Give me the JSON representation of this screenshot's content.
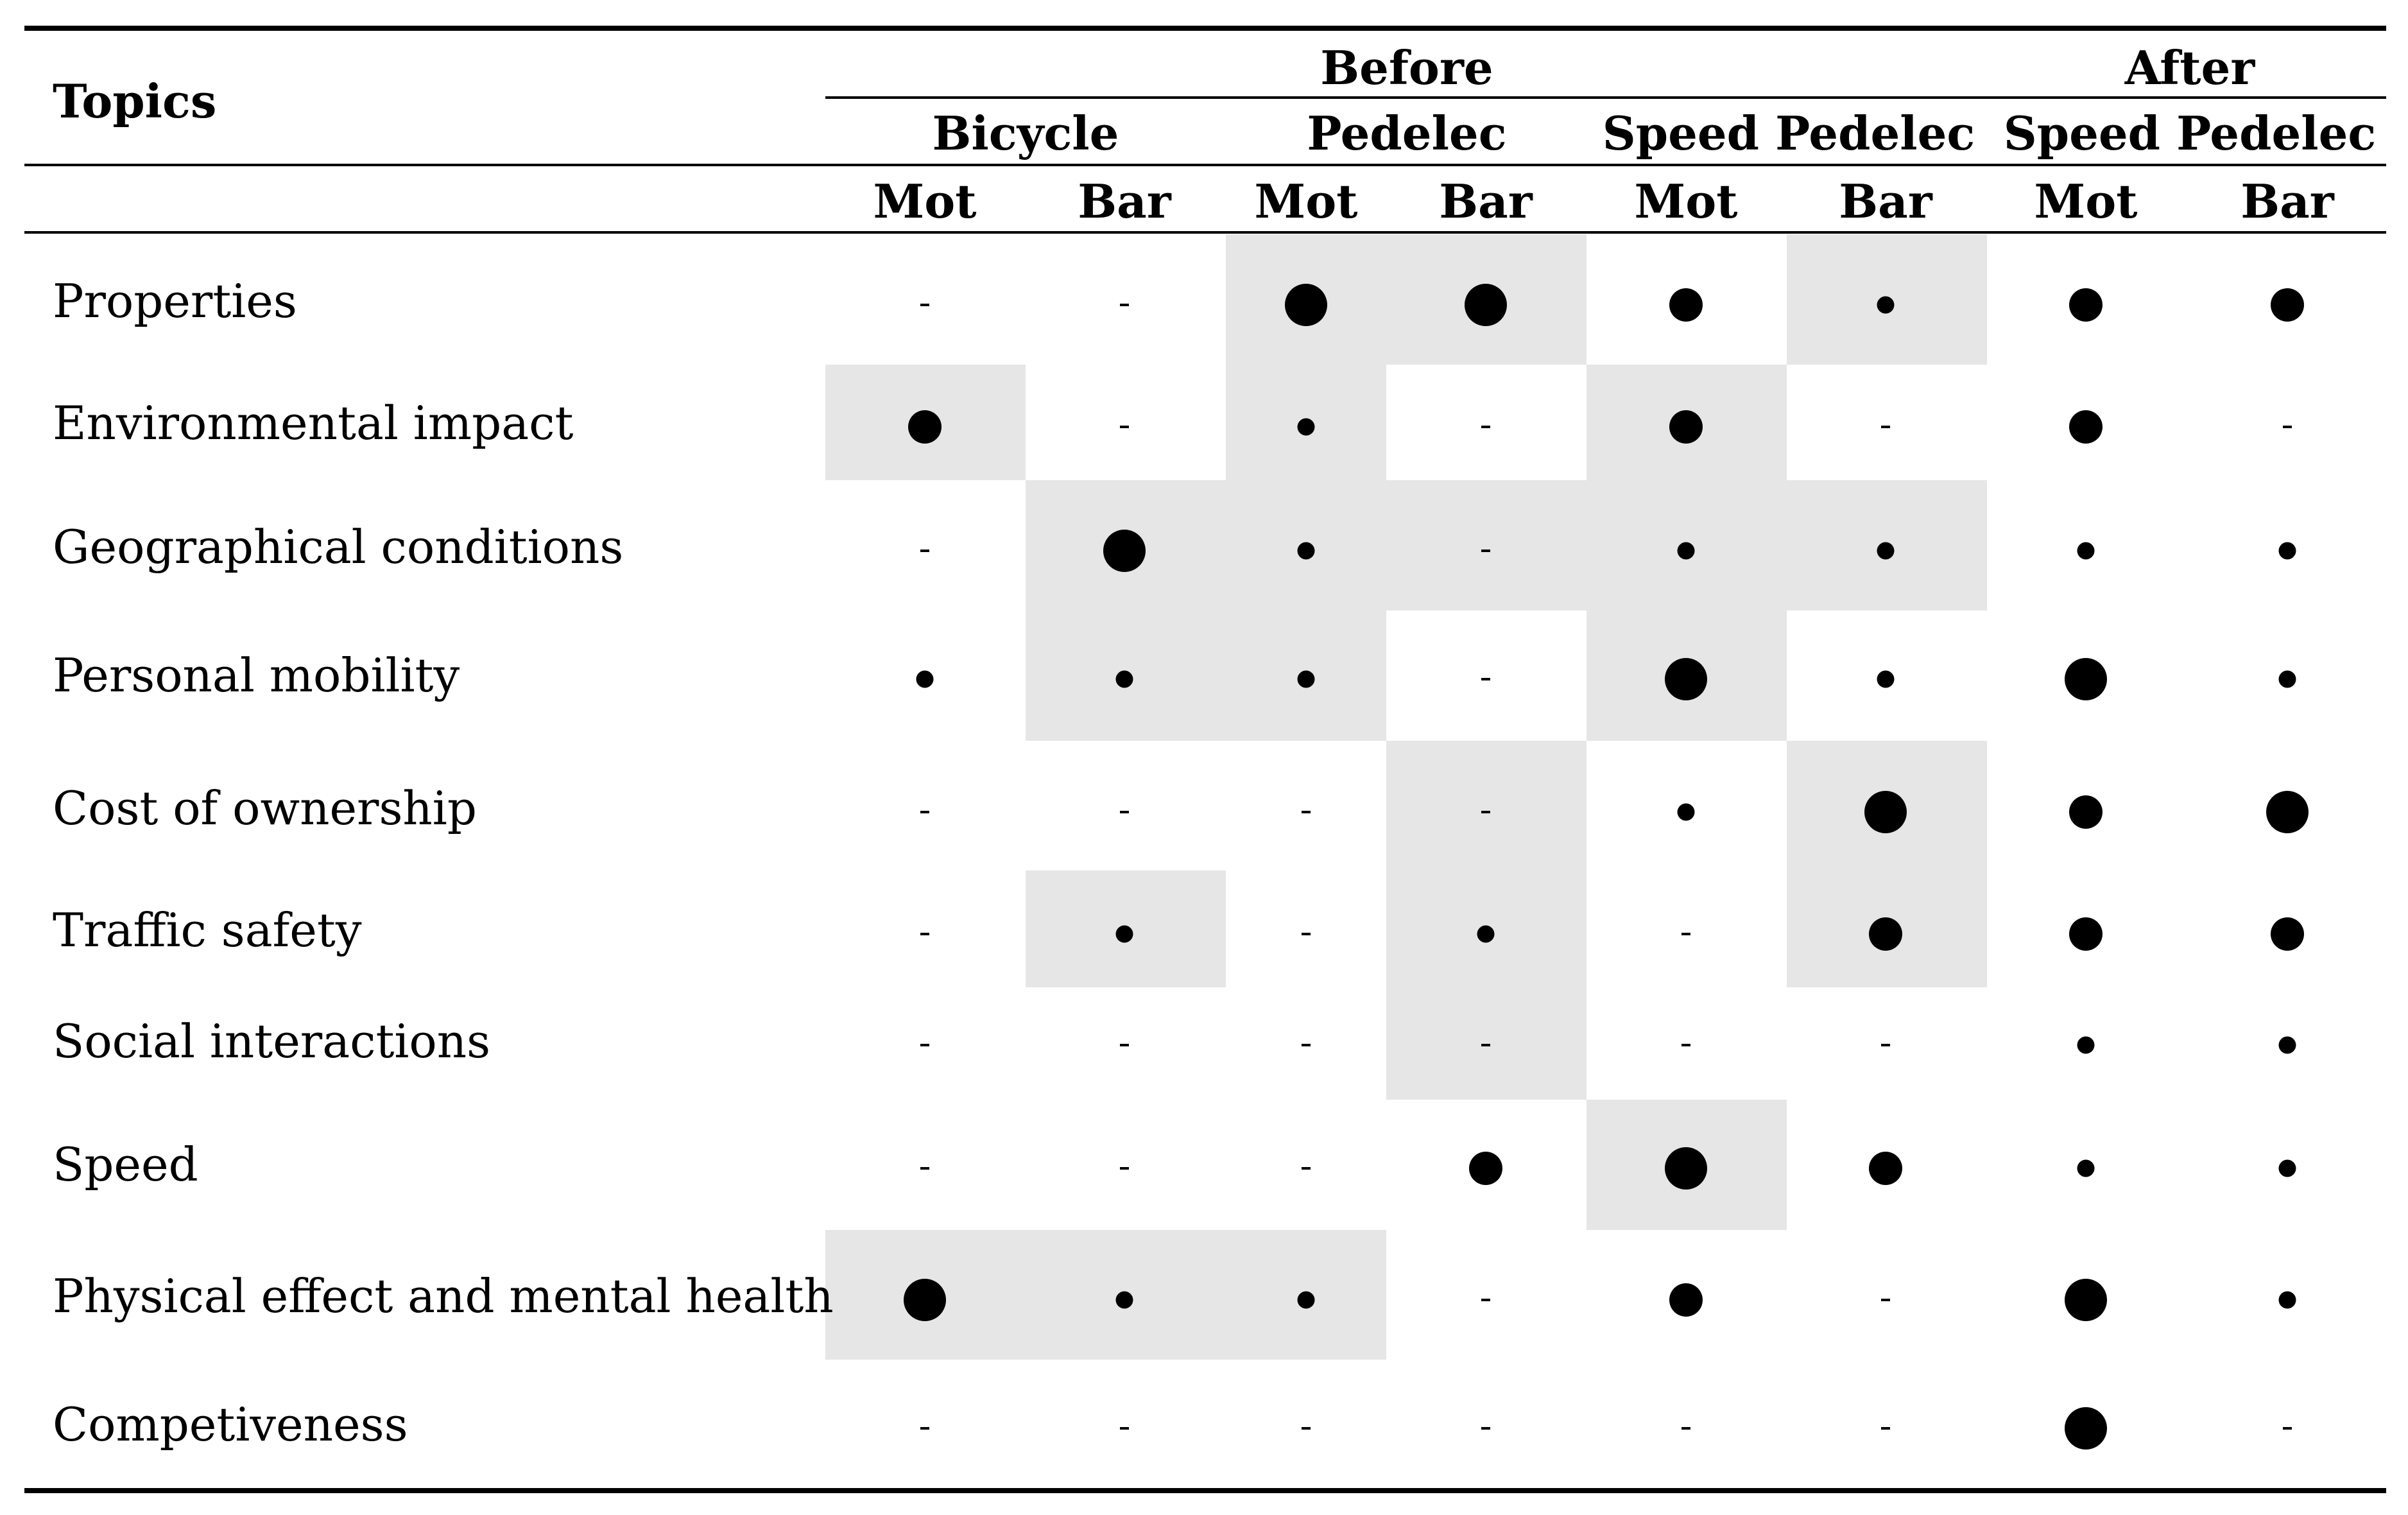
{
  "table": {
    "corner_label": "Topics",
    "periods": [
      "Before",
      "After"
    ],
    "vehicles": [
      "Bicycle",
      "Pedelec",
      "Speed Pedelec",
      "Speed Pedelec"
    ],
    "sub_labels": [
      "Mot",
      "Bar",
      "Mot",
      "Bar",
      "Mot",
      "Bar",
      "Mot",
      "Bar"
    ],
    "rows": [
      {
        "topic": "Properties",
        "cells": [
          "-",
          "-",
          "L",
          "L",
          "M",
          "S",
          "M",
          "M"
        ],
        "shaded": [
          false,
          false,
          true,
          true,
          false,
          true,
          false,
          false
        ]
      },
      {
        "topic": "Environmental impact",
        "cells": [
          "M",
          "-",
          "S",
          "-",
          "M",
          "-",
          "M",
          "-"
        ],
        "shaded": [
          true,
          false,
          true,
          false,
          true,
          false,
          false,
          false
        ]
      },
      {
        "topic": "Geographical conditions",
        "cells": [
          "-",
          "L",
          "S",
          "-",
          "S",
          "S",
          "S",
          "S"
        ],
        "shaded": [
          false,
          true,
          true,
          true,
          true,
          true,
          false,
          false
        ]
      },
      {
        "topic": "Personal mobility",
        "cells": [
          "S",
          "S",
          "S",
          "-",
          "L",
          "S",
          "L",
          "S"
        ],
        "shaded": [
          false,
          true,
          true,
          false,
          true,
          false,
          false,
          false
        ]
      },
      {
        "topic": "Cost of ownership",
        "cells": [
          "-",
          "-",
          "-",
          "-",
          "S",
          "L",
          "M",
          "L"
        ],
        "shaded": [
          false,
          false,
          false,
          true,
          false,
          true,
          false,
          false
        ]
      },
      {
        "topic": "Traffic safety",
        "cells": [
          "-",
          "S",
          "-",
          "S",
          "-",
          "M",
          "M",
          "M"
        ],
        "shaded": [
          false,
          true,
          false,
          true,
          false,
          true,
          false,
          false
        ]
      },
      {
        "topic": "Social interactions",
        "cells": [
          "-",
          "-",
          "-",
          "-",
          "-",
          "-",
          "S",
          "S"
        ],
        "shaded": [
          false,
          false,
          false,
          true,
          false,
          false,
          false,
          false
        ]
      },
      {
        "topic": "Speed",
        "cells": [
          "-",
          "-",
          "-",
          "M",
          "L",
          "M",
          "S",
          "S"
        ],
        "shaded": [
          false,
          false,
          false,
          false,
          true,
          false,
          false,
          false
        ]
      },
      {
        "topic": "Physical effect and mental health",
        "cells": [
          "L",
          "S",
          "S",
          "-",
          "M",
          "-",
          "L",
          "S"
        ],
        "shaded": [
          true,
          true,
          true,
          false,
          false,
          false,
          false,
          false
        ]
      },
      {
        "topic": "Competiveness",
        "cells": [
          "-",
          "-",
          "-",
          "-",
          "-",
          "-",
          "L",
          "-"
        ],
        "shaded": [
          false,
          false,
          false,
          false,
          false,
          false,
          false,
          false
        ]
      }
    ],
    "dot_legend": {
      "S": "small",
      "M": "medium",
      "L": "large",
      "-": "none"
    }
  }
}
